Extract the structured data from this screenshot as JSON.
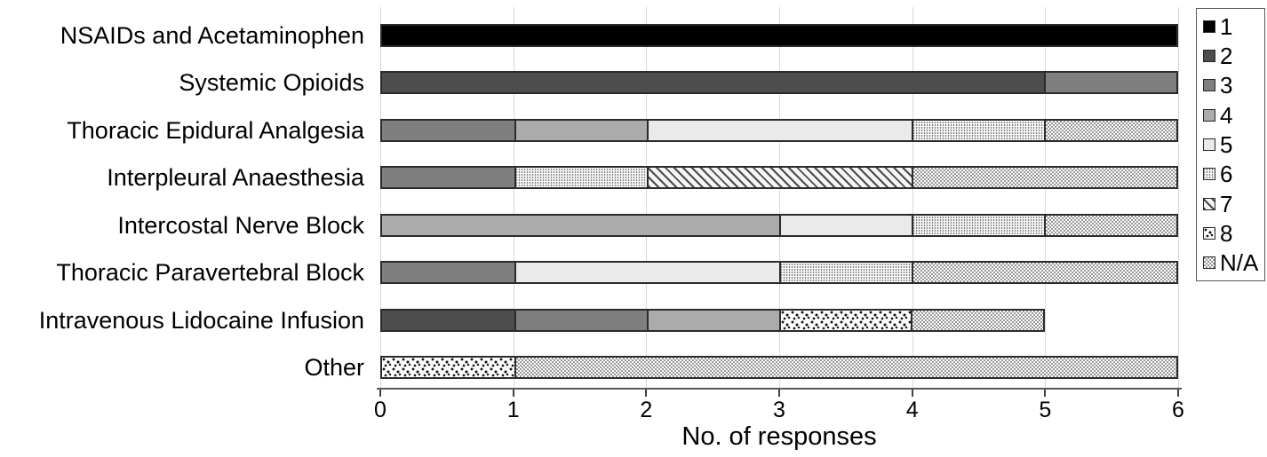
{
  "chart_data": {
    "type": "bar",
    "orientation": "horizontal",
    "stacked": true,
    "title": "",
    "xlabel": "No. of responses",
    "ylabel": "",
    "xlim": [
      0,
      6
    ],
    "xticks": [
      0,
      1,
      2,
      3,
      4,
      5,
      6
    ],
    "grid": true,
    "legend_position": "right-outside",
    "categories": [
      "NSAIDs and Acetaminophen",
      "Systemic Opioids",
      "Thoracic Epidural Analgesia",
      "Interpleural Anaesthesia",
      "Intercostal Nerve Block",
      "Thoracic Paravertebral Block",
      "Intravenous Lidocaine Infusion",
      "Other"
    ],
    "series": [
      {
        "name": "1",
        "color": "#000000",
        "values": [
          6,
          0,
          0,
          0,
          0,
          0,
          0,
          0
        ]
      },
      {
        "name": "2",
        "color": "#4d4d4d",
        "values": [
          0,
          5,
          0,
          0,
          0,
          0,
          1,
          0
        ]
      },
      {
        "name": "3",
        "color": "#7f7f7f",
        "values": [
          0,
          1,
          1,
          1,
          0,
          1,
          1,
          0
        ]
      },
      {
        "name": "4",
        "color": "#ababab",
        "values": [
          0,
          0,
          1,
          0,
          3,
          0,
          1,
          0
        ]
      },
      {
        "name": "5",
        "color": "#eaeaea",
        "values": [
          0,
          0,
          2,
          0,
          1,
          2,
          0,
          0
        ]
      },
      {
        "name": "6",
        "pattern": "dot-grid",
        "values": [
          0,
          0,
          1,
          1,
          1,
          1,
          0,
          0
        ]
      },
      {
        "name": "7",
        "pattern": "diagonal-stripes",
        "values": [
          0,
          0,
          0,
          2,
          0,
          0,
          0,
          0
        ]
      },
      {
        "name": "8",
        "pattern": "speckle",
        "values": [
          0,
          0,
          0,
          0,
          0,
          0,
          1,
          1
        ]
      },
      {
        "name": "N/A",
        "pattern": "fine-dots",
        "values": [
          0,
          0,
          1,
          2,
          1,
          2,
          1,
          5
        ]
      }
    ],
    "colors": {
      "gridline": "#d9d9d9",
      "bar_border": "#2b2b2b",
      "axis_line": "#595959",
      "text": "#000000"
    }
  }
}
